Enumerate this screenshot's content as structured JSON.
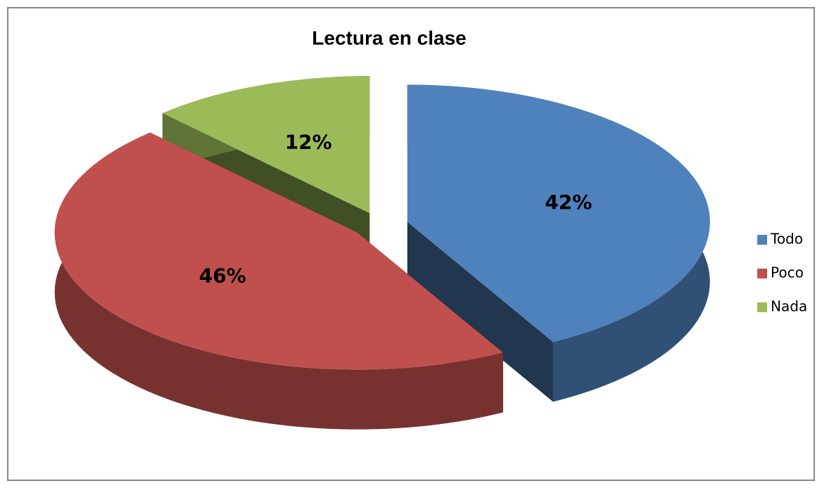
{
  "chart_data": {
    "type": "pie",
    "title": "Lectura en  clase",
    "categories": [
      "Todo",
      "Poco",
      "Nada"
    ],
    "values": [
      42,
      46,
      12
    ],
    "value_labels": [
      "42%",
      "46%",
      "12%"
    ],
    "colors": [
      "#4f81bd",
      "#c0504d",
      "#9bbb59"
    ],
    "legend": "right"
  }
}
